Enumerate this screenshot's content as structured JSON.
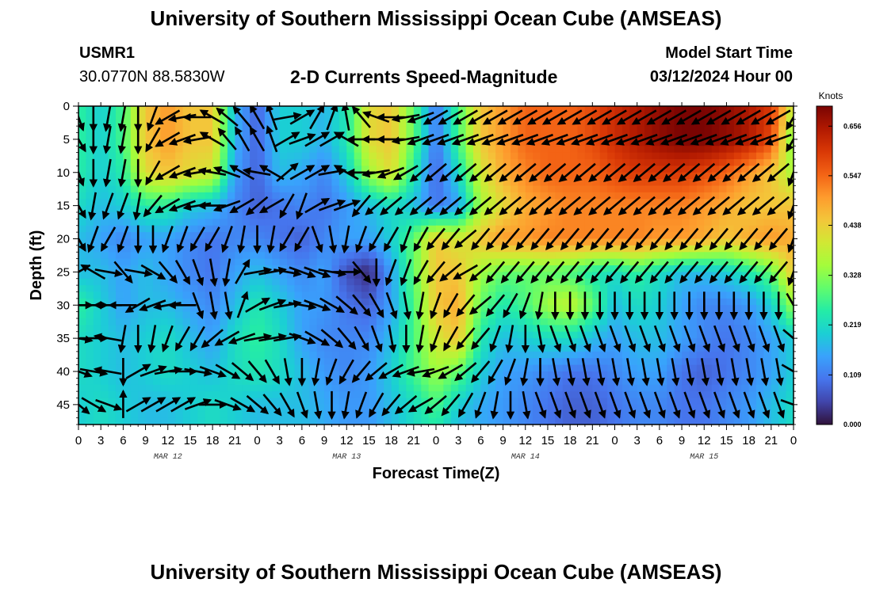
{
  "header": {
    "title_top": "University of Southern Mississippi Ocean Cube (AMSEAS)",
    "title_bottom": "University of Southern Mississippi Ocean Cube (AMSEAS)",
    "station_id": "USMR1",
    "station_coords": "30.0770N  88.5830W",
    "chart_title": "2-D Currents Speed-Magnitude",
    "model_start_label": "Model Start Time",
    "model_start_value": "03/12/2024 Hour 00"
  },
  "chart_data": {
    "type": "heatmap",
    "title": "2-D Currents Speed-Magnitude",
    "xlabel": "Forecast Time(Z)",
    "ylabel": "Depth (ft)",
    "x_unit": "hours since model start",
    "xlim": [
      0,
      96
    ],
    "ylim": [
      0,
      48
    ],
    "y_inverted": true,
    "x_ticks": [
      0,
      3,
      6,
      9,
      12,
      15,
      18,
      21,
      24,
      27,
      30,
      33,
      36,
      39,
      42,
      45,
      48,
      51,
      54,
      57,
      60,
      63,
      66,
      69,
      72,
      75,
      78,
      81,
      84,
      87,
      90,
      93,
      96
    ],
    "x_tick_labels": [
      "0",
      "3",
      "6",
      "9",
      "12",
      "15",
      "18",
      "21",
      "0",
      "3",
      "6",
      "9",
      "12",
      "15",
      "18",
      "21",
      "0",
      "3",
      "6",
      "9",
      "12",
      "15",
      "18",
      "21",
      "0",
      "3",
      "6",
      "9",
      "12",
      "15",
      "18",
      "21",
      "0"
    ],
    "date_labels": [
      {
        "text": "MAR 12",
        "hour": 12
      },
      {
        "text": "MAR 13",
        "hour": 36
      },
      {
        "text": "MAR 14",
        "hour": 60
      },
      {
        "text": "MAR 15",
        "hour": 84
      }
    ],
    "y_ticks": [
      0,
      5,
      10,
      15,
      20,
      25,
      30,
      35,
      40,
      45
    ],
    "colorbar": {
      "unit": "Knots",
      "range": [
        0,
        0.7
      ],
      "tick_values": [
        0.0,
        0.109,
        0.219,
        0.328,
        0.438,
        0.547,
        0.656
      ],
      "tick_labels": [
        "0.000",
        "0.109",
        "0.219",
        "0.328",
        "0.438",
        "0.547",
        "0.656"
      ],
      "colormap": [
        "#30123b",
        "#4145ab",
        "#4675ed",
        "#39a2fc",
        "#1bcfd4",
        "#24eca6",
        "#61fc6c",
        "#a4fc3b",
        "#d1e834",
        "#f3c63a",
        "#fe9b2d",
        "#f36315",
        "#d93806",
        "#b11901",
        "#7a0402"
      ]
    },
    "speed_field": {
      "x_hours": [
        0,
        3,
        6,
        9,
        12,
        15,
        18,
        21,
        24,
        27,
        30,
        33,
        36,
        39,
        42,
        45,
        48,
        51,
        54,
        57,
        60,
        63,
        66,
        69,
        72,
        75,
        78,
        81,
        84,
        87,
        90,
        93,
        96
      ],
      "depths_ft": [
        0,
        5,
        10,
        15,
        20,
        25,
        30,
        35,
        40,
        45,
        48
      ],
      "values_knots": [
        [
          0.26,
          0.2,
          0.28,
          0.45,
          0.5,
          0.45,
          0.45,
          0.17,
          0.08,
          0.2,
          0.2,
          0.17,
          0.24,
          0.42,
          0.45,
          0.3,
          0.1,
          0.28,
          0.45,
          0.5,
          0.55,
          0.55,
          0.55,
          0.58,
          0.62,
          0.65,
          0.68,
          0.7,
          0.7,
          0.68,
          0.65,
          0.6,
          0.38
        ],
        [
          0.26,
          0.2,
          0.28,
          0.45,
          0.5,
          0.45,
          0.45,
          0.17,
          0.08,
          0.2,
          0.2,
          0.17,
          0.24,
          0.42,
          0.45,
          0.3,
          0.1,
          0.28,
          0.45,
          0.5,
          0.55,
          0.55,
          0.55,
          0.58,
          0.62,
          0.65,
          0.68,
          0.7,
          0.7,
          0.68,
          0.65,
          0.58,
          0.3
        ],
        [
          0.25,
          0.2,
          0.25,
          0.42,
          0.45,
          0.42,
          0.4,
          0.15,
          0.08,
          0.18,
          0.16,
          0.12,
          0.2,
          0.35,
          0.42,
          0.25,
          0.08,
          0.22,
          0.4,
          0.48,
          0.52,
          0.55,
          0.55,
          0.55,
          0.58,
          0.6,
          0.6,
          0.6,
          0.58,
          0.55,
          0.5,
          0.45,
          0.35
        ],
        [
          0.22,
          0.18,
          0.2,
          0.25,
          0.25,
          0.2,
          0.18,
          0.12,
          0.08,
          0.1,
          0.12,
          0.1,
          0.14,
          0.18,
          0.22,
          0.18,
          0.1,
          0.15,
          0.35,
          0.42,
          0.48,
          0.5,
          0.52,
          0.52,
          0.52,
          0.52,
          0.52,
          0.52,
          0.5,
          0.48,
          0.45,
          0.45,
          0.45
        ],
        [
          0.18,
          0.15,
          0.12,
          0.15,
          0.15,
          0.12,
          0.1,
          0.12,
          0.12,
          0.1,
          0.08,
          0.12,
          0.15,
          0.15,
          0.2,
          0.3,
          0.45,
          0.4,
          0.45,
          0.5,
          0.5,
          0.52,
          0.52,
          0.52,
          0.52,
          0.52,
          0.5,
          0.5,
          0.48,
          0.45,
          0.48,
          0.5,
          0.48
        ],
        [
          0.18,
          0.18,
          0.15,
          0.18,
          0.15,
          0.12,
          0.1,
          0.15,
          0.18,
          0.15,
          0.12,
          0.15,
          0.06,
          0.02,
          0.15,
          0.3,
          0.45,
          0.45,
          0.35,
          0.3,
          0.3,
          0.3,
          0.28,
          0.24,
          0.22,
          0.26,
          0.22,
          0.18,
          0.18,
          0.2,
          0.24,
          0.3,
          0.45
        ],
        [
          0.26,
          0.2,
          0.15,
          0.18,
          0.18,
          0.15,
          0.12,
          0.18,
          0.24,
          0.2,
          0.15,
          0.14,
          0.1,
          0.08,
          0.15,
          0.28,
          0.45,
          0.48,
          0.3,
          0.24,
          0.28,
          0.35,
          0.38,
          0.3,
          0.18,
          0.22,
          0.2,
          0.15,
          0.12,
          0.12,
          0.14,
          0.2,
          0.35
        ],
        [
          0.22,
          0.2,
          0.18,
          0.2,
          0.22,
          0.18,
          0.15,
          0.22,
          0.26,
          0.22,
          0.15,
          0.12,
          0.12,
          0.12,
          0.18,
          0.28,
          0.4,
          0.45,
          0.24,
          0.18,
          0.2,
          0.22,
          0.22,
          0.18,
          0.15,
          0.18,
          0.18,
          0.15,
          0.12,
          0.1,
          0.12,
          0.15,
          0.2
        ],
        [
          0.22,
          0.2,
          0.18,
          0.2,
          0.22,
          0.2,
          0.18,
          0.22,
          0.24,
          0.22,
          0.18,
          0.14,
          0.12,
          0.14,
          0.2,
          0.28,
          0.35,
          0.3,
          0.2,
          0.15,
          0.14,
          0.12,
          0.1,
          0.1,
          0.12,
          0.15,
          0.15,
          0.1,
          0.08,
          0.1,
          0.12,
          0.15,
          0.2
        ],
        [
          0.2,
          0.22,
          0.2,
          0.18,
          0.18,
          0.2,
          0.22,
          0.2,
          0.18,
          0.18,
          0.18,
          0.16,
          0.14,
          0.14,
          0.18,
          0.22,
          0.28,
          0.2,
          0.16,
          0.14,
          0.12,
          0.1,
          0.08,
          0.08,
          0.1,
          0.12,
          0.12,
          0.1,
          0.1,
          0.12,
          0.14,
          0.18,
          0.22
        ],
        [
          0.2,
          0.22,
          0.2,
          0.18,
          0.18,
          0.2,
          0.22,
          0.2,
          0.18,
          0.18,
          0.18,
          0.16,
          0.14,
          0.14,
          0.18,
          0.22,
          0.25,
          0.18,
          0.16,
          0.14,
          0.12,
          0.1,
          0.08,
          0.08,
          0.1,
          0.12,
          0.12,
          0.1,
          0.1,
          0.12,
          0.14,
          0.18,
          0.22
        ]
      ]
    },
    "vectors": {
      "description": "current direction in degrees (0 = up/north, clockwise), sampled every 2 hours",
      "x_hours": [
        0,
        2,
        4,
        6,
        8,
        10,
        12,
        14,
        16,
        18,
        20,
        22,
        24,
        26,
        28,
        30,
        32,
        34,
        36,
        38,
        40,
        42,
        44,
        46,
        48,
        50,
        52,
        54,
        56,
        58,
        60,
        62,
        64,
        66,
        68,
        70,
        72,
        74,
        76,
        78,
        80,
        82,
        84,
        86,
        88,
        90,
        92,
        94,
        96
      ],
      "depths_ft": [
        0,
        5,
        10,
        15,
        20,
        25,
        30,
        35,
        40,
        45
      ],
      "directions_deg": [
        [
          160,
          180,
          190,
          190,
          180,
          200,
          240,
          260,
          270,
          300,
          310,
          320,
          330,
          340,
          80,
          60,
          30,
          20,
          350,
          320,
          290,
          270,
          260,
          250,
          240,
          240,
          240,
          240,
          240,
          240,
          240,
          240,
          240,
          240,
          240,
          240,
          240,
          240,
          240,
          240,
          240,
          240,
          240,
          240,
          240,
          240,
          240,
          240,
          210
        ],
        [
          150,
          180,
          190,
          190,
          180,
          210,
          240,
          250,
          260,
          300,
          320,
          330,
          330,
          340,
          60,
          70,
          60,
          60,
          300,
          270,
          270,
          270,
          260,
          250,
          250,
          250,
          250,
          250,
          250,
          250,
          250,
          250,
          250,
          250,
          250,
          250,
          250,
          250,
          250,
          250,
          250,
          250,
          250,
          250,
          250,
          250,
          250,
          250,
          210
        ],
        [
          160,
          180,
          190,
          190,
          180,
          210,
          240,
          250,
          260,
          280,
          290,
          300,
          280,
          300,
          50,
          60,
          60,
          80,
          300,
          270,
          260,
          250,
          240,
          230,
          230,
          230,
          230,
          230,
          230,
          230,
          230,
          230,
          230,
          230,
          230,
          230,
          230,
          230,
          230,
          230,
          230,
          230,
          230,
          230,
          230,
          230,
          230,
          230,
          200
        ],
        [
          150,
          190,
          200,
          200,
          190,
          220,
          240,
          250,
          260,
          270,
          250,
          240,
          230,
          240,
          210,
          200,
          60,
          70,
          70,
          220,
          230,
          230,
          230,
          230,
          230,
          230,
          230,
          230,
          230,
          230,
          230,
          230,
          230,
          230,
          230,
          230,
          230,
          230,
          230,
          230,
          230,
          230,
          230,
          230,
          230,
          230,
          230,
          230,
          200
        ],
        [
          150,
          200,
          210,
          200,
          180,
          180,
          200,
          200,
          210,
          210,
          200,
          190,
          180,
          190,
          210,
          210,
          160,
          170,
          190,
          200,
          210,
          210,
          200,
          210,
          220,
          220,
          230,
          220,
          220,
          220,
          220,
          220,
          220,
          220,
          220,
          220,
          220,
          220,
          220,
          220,
          220,
          220,
          220,
          220,
          220,
          220,
          220,
          220,
          200
        ],
        [
          240,
          300,
          100,
          140,
          100,
          120,
          140,
          150,
          160,
          170,
          190,
          30,
          80,
          80,
          100,
          110,
          110,
          100,
          90,
          140,
          180,
          200,
          200,
          210,
          220,
          230,
          240,
          230,
          220,
          220,
          220,
          220,
          220,
          220,
          220,
          220,
          220,
          220,
          220,
          220,
          220,
          220,
          220,
          220,
          220,
          220,
          220,
          220,
          200
        ],
        [
          90,
          90,
          270,
          270,
          240,
          250,
          260,
          270,
          160,
          170,
          170,
          20,
          60,
          70,
          80,
          100,
          110,
          120,
          130,
          140,
          150,
          160,
          170,
          190,
          200,
          210,
          220,
          230,
          220,
          210,
          200,
          190,
          180,
          180,
          180,
          180,
          180,
          180,
          180,
          180,
          180,
          180,
          180,
          180,
          180,
          180,
          180,
          180,
          150
        ],
        [
          100,
          90,
          280,
          190,
          180,
          190,
          200,
          210,
          210,
          230,
          240,
          250,
          80,
          80,
          80,
          110,
          120,
          130,
          140,
          150,
          160,
          170,
          180,
          190,
          200,
          210,
          220,
          220,
          200,
          190,
          180,
          170,
          160,
          160,
          160,
          160,
          160,
          160,
          160,
          160,
          160,
          160,
          160,
          160,
          160,
          160,
          160,
          160,
          130
        ],
        [
          110,
          100,
          280,
          180,
          60,
          70,
          80,
          90,
          100,
          110,
          120,
          130,
          140,
          150,
          170,
          180,
          190,
          200,
          210,
          220,
          230,
          240,
          250,
          260,
          250,
          240,
          230,
          220,
          210,
          200,
          190,
          180,
          170,
          170,
          170,
          170,
          170,
          170,
          170,
          170,
          170,
          170,
          170,
          170,
          170,
          170,
          170,
          170,
          120
        ],
        [
          130,
          120,
          110,
          0,
          60,
          60,
          60,
          60,
          70,
          90,
          110,
          120,
          130,
          140,
          150,
          160,
          170,
          180,
          190,
          200,
          210,
          220,
          230,
          240,
          230,
          220,
          210,
          200,
          190,
          180,
          170,
          160,
          160,
          160,
          160,
          160,
          160,
          160,
          160,
          160,
          160,
          160,
          160,
          160,
          160,
          160,
          160,
          160,
          110
        ]
      ]
    }
  }
}
